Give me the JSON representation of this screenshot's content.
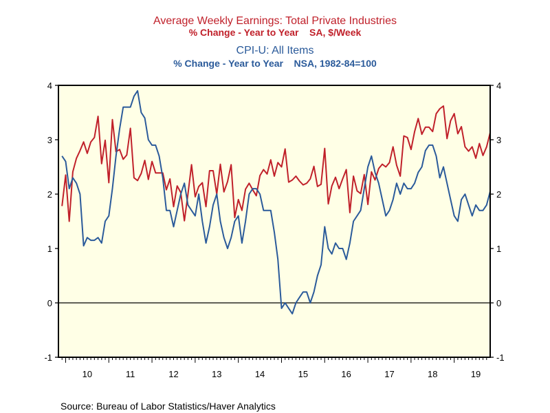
{
  "chart_data": {
    "type": "line",
    "titles": [
      {
        "text": "Average Weekly Earnings: Total Private Industries",
        "color": "#c0202a"
      },
      {
        "text": "% Change - Year to Year    SA, $/Week",
        "color": "#c0202a"
      },
      {
        "text": "CPI-U: All Items",
        "color": "#2a5a9a"
      },
      {
        "text": "% Change - Year to Year    NSA, 1982-84=100",
        "color": "#2a5a9a"
      }
    ],
    "source": "Source:  Bureau of Labor Statistics/Haver Analytics",
    "ylim": [
      -1,
      4
    ],
    "yticks": [
      "-1",
      "0",
      "1",
      "2",
      "3",
      "4"
    ],
    "xtick_labels": [
      "10",
      "11",
      "12",
      "13",
      "14",
      "15",
      "16",
      "17",
      "18",
      "19"
    ],
    "xtick_years": [
      2010,
      2011,
      2012,
      2013,
      2014,
      2015,
      2016,
      2017,
      2018,
      2019
    ],
    "xlim": [
      "2009-11",
      "2019-11"
    ],
    "zero_line": true,
    "grid": false,
    "background": "#ffffe6",
    "x": [
      "2009-12",
      "2010-01",
      "2010-02",
      "2010-03",
      "2010-04",
      "2010-05",
      "2010-06",
      "2010-07",
      "2010-08",
      "2010-09",
      "2010-10",
      "2010-11",
      "2010-12",
      "2011-01",
      "2011-02",
      "2011-03",
      "2011-04",
      "2011-05",
      "2011-06",
      "2011-07",
      "2011-08",
      "2011-09",
      "2011-10",
      "2011-11",
      "2011-12",
      "2012-01",
      "2012-02",
      "2012-03",
      "2012-04",
      "2012-05",
      "2012-06",
      "2012-07",
      "2012-08",
      "2012-09",
      "2012-10",
      "2012-11",
      "2012-12",
      "2013-01",
      "2013-02",
      "2013-03",
      "2013-04",
      "2013-05",
      "2013-06",
      "2013-07",
      "2013-08",
      "2013-09",
      "2013-10",
      "2013-11",
      "2013-12",
      "2014-01",
      "2014-02",
      "2014-03",
      "2014-04",
      "2014-05",
      "2014-06",
      "2014-07",
      "2014-08",
      "2014-09",
      "2014-10",
      "2014-11",
      "2014-12",
      "2015-01",
      "2015-02",
      "2015-03",
      "2015-04",
      "2015-05",
      "2015-06",
      "2015-07",
      "2015-08",
      "2015-09",
      "2015-10",
      "2015-11",
      "2015-12",
      "2016-01",
      "2016-02",
      "2016-03",
      "2016-04",
      "2016-05",
      "2016-06",
      "2016-07",
      "2016-08",
      "2016-09",
      "2016-10",
      "2016-11",
      "2016-12",
      "2017-01",
      "2017-02",
      "2017-03",
      "2017-04",
      "2017-05",
      "2017-06",
      "2017-07",
      "2017-08",
      "2017-09",
      "2017-10",
      "2017-11",
      "2017-12",
      "2018-01",
      "2018-02",
      "2018-03",
      "2018-04",
      "2018-05",
      "2018-06",
      "2018-07",
      "2018-08",
      "2018-09",
      "2018-10",
      "2018-11",
      "2018-12",
      "2019-01",
      "2019-02",
      "2019-03",
      "2019-04",
      "2019-05",
      "2019-06",
      "2019-07",
      "2019-08",
      "2019-09",
      "2019-10",
      "2019-11"
    ],
    "series": [
      {
        "color": "#c0202a",
        "values": [
          1.78,
          2.35,
          1.5,
          2.41,
          2.66,
          2.8,
          2.96,
          2.75,
          2.96,
          3.04,
          3.43,
          2.56,
          2.99,
          2.21,
          3.37,
          2.78,
          2.82,
          2.64,
          2.72,
          3.21,
          2.3,
          2.25,
          2.38,
          2.62,
          2.27,
          2.6,
          2.39,
          2.39,
          2.39,
          2.08,
          2.28,
          1.77,
          2.15,
          2.03,
          1.51,
          2.0,
          2.54,
          1.95,
          2.14,
          2.21,
          1.77,
          2.43,
          2.43,
          2.0,
          2.55,
          2.04,
          2.23,
          2.54,
          1.57,
          1.9,
          1.7,
          2.09,
          2.2,
          2.08,
          1.97,
          2.34,
          2.45,
          2.37,
          2.63,
          2.33,
          2.58,
          2.5,
          2.83,
          2.22,
          2.26,
          2.33,
          2.24,
          2.17,
          2.2,
          2.28,
          2.51,
          2.14,
          2.18,
          2.84,
          1.82,
          2.15,
          2.31,
          2.1,
          2.28,
          2.45,
          1.66,
          2.33,
          2.06,
          2.01,
          2.36,
          1.81,
          2.41,
          2.26,
          2.47,
          2.55,
          2.5,
          2.58,
          2.87,
          2.53,
          2.33,
          3.07,
          3.04,
          2.82,
          3.15,
          3.39,
          3.1,
          3.23,
          3.23,
          3.15,
          3.48,
          3.57,
          3.62,
          3.02,
          3.35,
          3.48,
          3.11,
          3.24,
          2.87,
          2.79,
          2.87,
          2.66,
          2.93,
          2.71,
          2.87,
          3.13
        ]
      },
      {
        "color": "#2a5a9a",
        "values": [
          2.7,
          2.6,
          2.1,
          2.3,
          2.2,
          2.0,
          1.05,
          1.2,
          1.15,
          1.15,
          1.2,
          1.1,
          1.5,
          1.6,
          2.1,
          2.7,
          3.2,
          3.6,
          3.6,
          3.6,
          3.8,
          3.9,
          3.5,
          3.4,
          3.0,
          2.9,
          2.9,
          2.7,
          2.3,
          1.7,
          1.7,
          1.4,
          1.7,
          2.0,
          2.2,
          1.8,
          1.7,
          1.6,
          2.0,
          1.5,
          1.1,
          1.4,
          1.8,
          2.0,
          1.5,
          1.2,
          1.0,
          1.2,
          1.5,
          1.6,
          1.1,
          1.5,
          2.0,
          2.1,
          2.1,
          2.0,
          1.7,
          1.7,
          1.7,
          1.3,
          0.8,
          -0.1,
          0.0,
          -0.1,
          -0.2,
          0.0,
          0.1,
          0.2,
          0.2,
          0.0,
          0.2,
          0.5,
          0.7,
          1.4,
          1.0,
          0.9,
          1.1,
          1.0,
          1.0,
          0.8,
          1.1,
          1.5,
          1.6,
          1.7,
          2.1,
          2.5,
          2.7,
          2.4,
          2.2,
          1.9,
          1.6,
          1.7,
          1.9,
          2.2,
          2.0,
          2.2,
          2.1,
          2.1,
          2.2,
          2.4,
          2.5,
          2.8,
          2.9,
          2.9,
          2.7,
          2.3,
          2.5,
          2.2,
          1.9,
          1.6,
          1.5,
          1.9,
          2.0,
          1.8,
          1.6,
          1.8,
          1.7,
          1.7,
          1.8,
          2.05
        ]
      }
    ]
  }
}
